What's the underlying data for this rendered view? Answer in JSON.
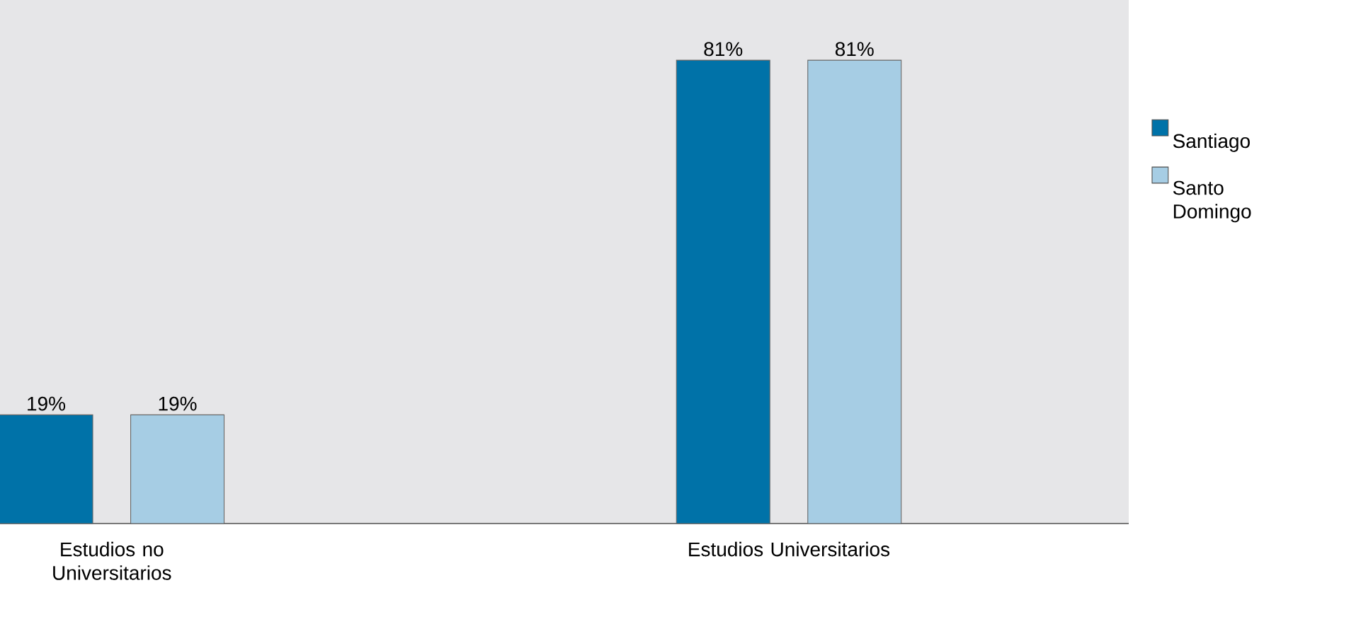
{
  "chart_data": {
    "type": "bar",
    "categories": [
      "Estudios no Universitarios",
      "Estudios Universitarios"
    ],
    "series": [
      {
        "name": "Santiago",
        "color": "#0072a8",
        "values": [
          19,
          81
        ],
        "value_labels": [
          "19%",
          "81%"
        ]
      },
      {
        "name": "Santo Domingo",
        "color": "#a6cde4",
        "values": [
          19,
          81
        ],
        "value_labels": [
          "19%",
          "81%"
        ]
      }
    ],
    "legend": "right",
    "grid": false
  }
}
